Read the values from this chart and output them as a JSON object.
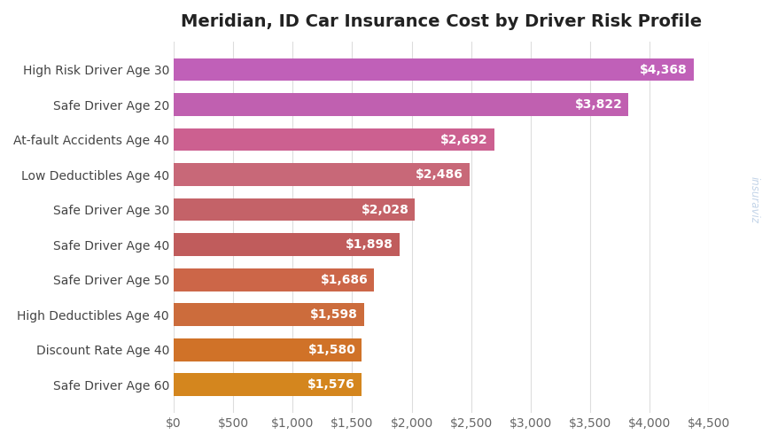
{
  "title": "Meridian, ID Car Insurance Cost by Driver Risk Profile",
  "categories": [
    "High Risk Driver Age 30",
    "Safe Driver Age 20",
    "At-fault Accidents Age 40",
    "Low Deductibles Age 40",
    "Safe Driver Age 30",
    "Safe Driver Age 40",
    "Safe Driver Age 50",
    "High Deductibles Age 40",
    "Discount Rate Age 40",
    "Safe Driver Age 60"
  ],
  "values": [
    4368,
    3822,
    2692,
    2486,
    2028,
    1898,
    1686,
    1598,
    1580,
    1576
  ],
  "bar_colors": [
    "#c060b8",
    "#c060b0",
    "#cc6090",
    "#c86878",
    "#c46268",
    "#c05c5c",
    "#cc6648",
    "#cc6c3c",
    "#d07228",
    "#d4861e"
  ],
  "xlim": [
    0,
    4500
  ],
  "xticks": [
    0,
    500,
    1000,
    1500,
    2000,
    2500,
    3000,
    3500,
    4000,
    4500
  ],
  "background_color": "#ffffff",
  "grid_color": "#dddddd",
  "title_fontsize": 14,
  "label_fontsize": 10,
  "value_fontsize": 10,
  "watermark": "insuraviz"
}
